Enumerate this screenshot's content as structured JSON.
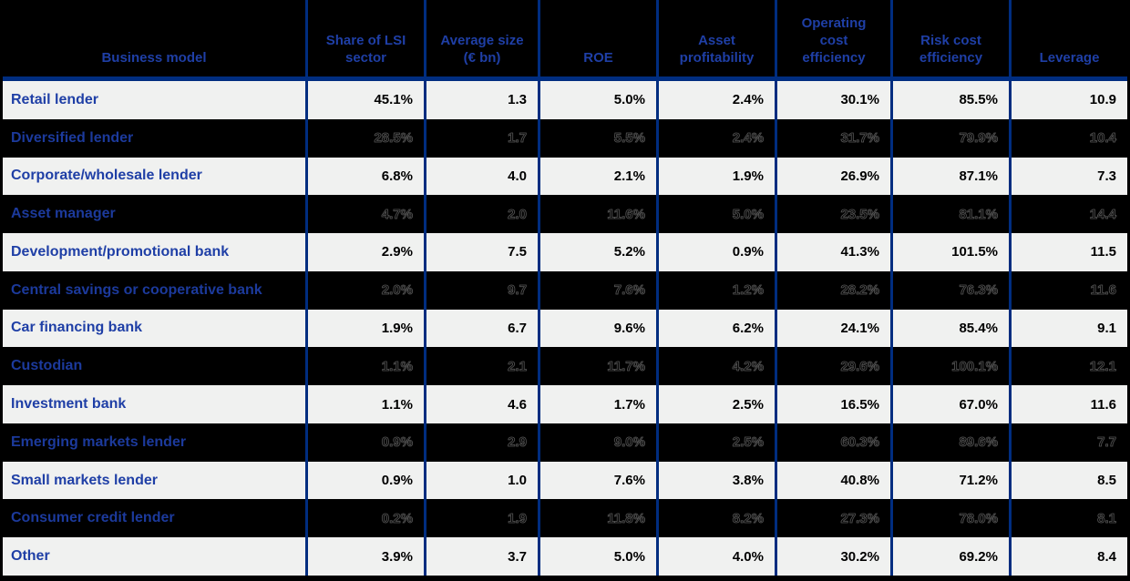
{
  "chart_data": {
    "type": "table",
    "columns": [
      "Business model",
      "Share of LSI\nsector",
      "Average size\n(€ bn)",
      "ROE",
      "Asset\nprofitability",
      "Operating\ncost\nefficiency",
      "Risk cost\nefficiency",
      "Leverage"
    ],
    "rows": [
      {
        "business_model": "Retail lender",
        "values": [
          "45.1%",
          "1.3",
          "5.0%",
          "2.4%",
          "30.1%",
          "85.5%",
          "10.9"
        ],
        "dark": false
      },
      {
        "business_model": "Diversified lender",
        "values": [
          "28.5%",
          "1.7",
          "5.5%",
          "2.4%",
          "31.7%",
          "79.9%",
          "10.4"
        ],
        "dark": true
      },
      {
        "business_model": "Corporate/wholesale lender",
        "values": [
          "6.8%",
          "4.0",
          "2.1%",
          "1.9%",
          "26.9%",
          "87.1%",
          "7.3"
        ],
        "dark": false
      },
      {
        "business_model": "Asset manager",
        "values": [
          "4.7%",
          "2.0",
          "11.6%",
          "5.0%",
          "23.5%",
          "81.1%",
          "14.4"
        ],
        "dark": true
      },
      {
        "business_model": "Development/promotional bank",
        "values": [
          "2.9%",
          "7.5",
          "5.2%",
          "0.9%",
          "41.3%",
          "101.5%",
          "11.5"
        ],
        "dark": false
      },
      {
        "business_model": "Central savings or cooperative bank",
        "values": [
          "2.0%",
          "9.7",
          "7.6%",
          "1.2%",
          "28.2%",
          "76.3%",
          "11.6"
        ],
        "dark": true
      },
      {
        "business_model": "Car financing bank",
        "values": [
          "1.9%",
          "6.7",
          "9.6%",
          "6.2%",
          "24.1%",
          "85.4%",
          "9.1"
        ],
        "dark": false
      },
      {
        "business_model": "Custodian",
        "values": [
          "1.1%",
          "2.1",
          "11.7%",
          "4.2%",
          "29.6%",
          "100.1%",
          "12.1"
        ],
        "dark": true
      },
      {
        "business_model": "Investment bank",
        "values": [
          "1.1%",
          "4.6",
          "1.7%",
          "2.5%",
          "16.5%",
          "67.0%",
          "11.6"
        ],
        "dark": false
      },
      {
        "business_model": "Emerging markets lender",
        "values": [
          "0.9%",
          "2.9",
          "9.0%",
          "2.5%",
          "60.3%",
          "89.6%",
          "7.7"
        ],
        "dark": true
      },
      {
        "business_model": "Small markets lender",
        "values": [
          "0.9%",
          "1.0",
          "7.6%",
          "3.8%",
          "40.8%",
          "71.2%",
          "8.5"
        ],
        "dark": false
      },
      {
        "business_model": "Consumer credit lender",
        "values": [
          "0.2%",
          "1.9",
          "11.8%",
          "8.2%",
          "27.3%",
          "78.0%",
          "8.1"
        ],
        "dark": true
      },
      {
        "business_model": "Other",
        "values": [
          "3.9%",
          "3.7",
          "5.0%",
          "4.0%",
          "30.2%",
          "69.2%",
          "8.4"
        ],
        "dark": false
      }
    ],
    "layout": {
      "grid": "on",
      "header_background": "#000000",
      "alternating_row_backgrounds": [
        "#f0f1f0",
        "#000000"
      ]
    }
  },
  "colors": {
    "text_blue": "#1f3fa6",
    "border_navy": "#002d80",
    "row_light": "#f0f1f0",
    "row_dark": "#000000",
    "value_text": "#000000"
  }
}
